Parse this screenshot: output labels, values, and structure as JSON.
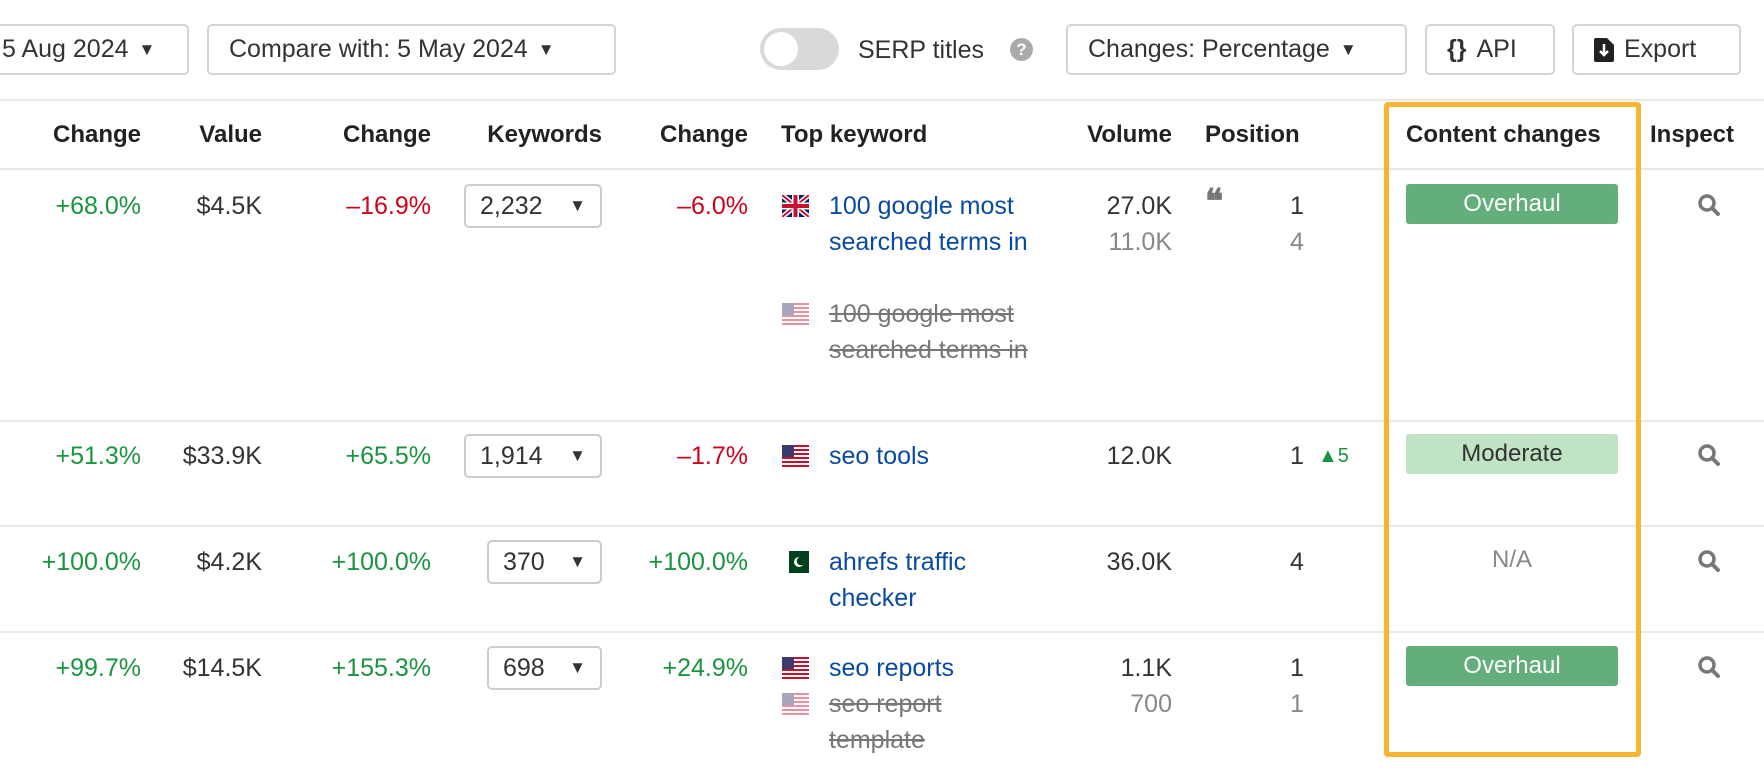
{
  "toolbar": {
    "date_label": "5 Aug 2024",
    "compare_label": "Compare with: 5 May 2024",
    "serp_titles_label": "SERP titles",
    "serp_titles_on": false,
    "changes_label": "Changes: Percentage",
    "api_label": "API",
    "export_label": "Export"
  },
  "headers": [
    "Change",
    "Value",
    "Change",
    "Keywords",
    "Change",
    "Top keyword",
    "Volume",
    "Position",
    "Content changes",
    "Inspect"
  ],
  "colors": {
    "positive": "#1a9440",
    "negative": "#d0021b",
    "link": "#0b4aa2",
    "overhaul": "#64ae7b",
    "moderate": "#bfe3c3",
    "highlight": "#f8b533"
  },
  "rows": [
    {
      "traffic_change": "+68.0%",
      "value": "$4.5K",
      "value_change": "–16.9%",
      "keywords": "2,232",
      "keywords_change": "–6.0%",
      "top_keyword": "100 google most searched terms in",
      "top_flag": "uk",
      "old_keyword": "100 google most searched terms in",
      "old_flag": "us",
      "volume": "27.0K",
      "old_volume": "11.0K",
      "serp_feature": "quote-icon",
      "position": "1",
      "old_position": "4",
      "position_delta": "",
      "content_change": "Overhaul"
    },
    {
      "traffic_change": "+51.3%",
      "value": "$33.9K",
      "value_change": "+65.5%",
      "keywords": "1,914",
      "keywords_change": "–1.7%",
      "top_keyword": "seo tools",
      "top_flag": "us",
      "volume": "12.0K",
      "position": "1",
      "position_delta": "5",
      "content_change": "Moderate"
    },
    {
      "traffic_change": "+100.0%",
      "value": "$4.2K",
      "value_change": "+100.0%",
      "keywords": "370",
      "keywords_change": "+100.0%",
      "top_keyword": "ahrefs traffic checker",
      "top_flag": "pk",
      "volume": "36.0K",
      "position": "4",
      "content_change": "N/A"
    },
    {
      "traffic_change": "+99.7%",
      "value": "$14.5K",
      "value_change": "+155.3%",
      "keywords": "698",
      "keywords_change": "+24.9%",
      "top_keyword": "seo reports",
      "top_flag": "us",
      "old_keyword": "seo report template",
      "old_flag": "us",
      "volume": "1.1K",
      "old_volume": "700",
      "position": "1",
      "old_position": "1",
      "content_change": "Overhaul"
    }
  ]
}
